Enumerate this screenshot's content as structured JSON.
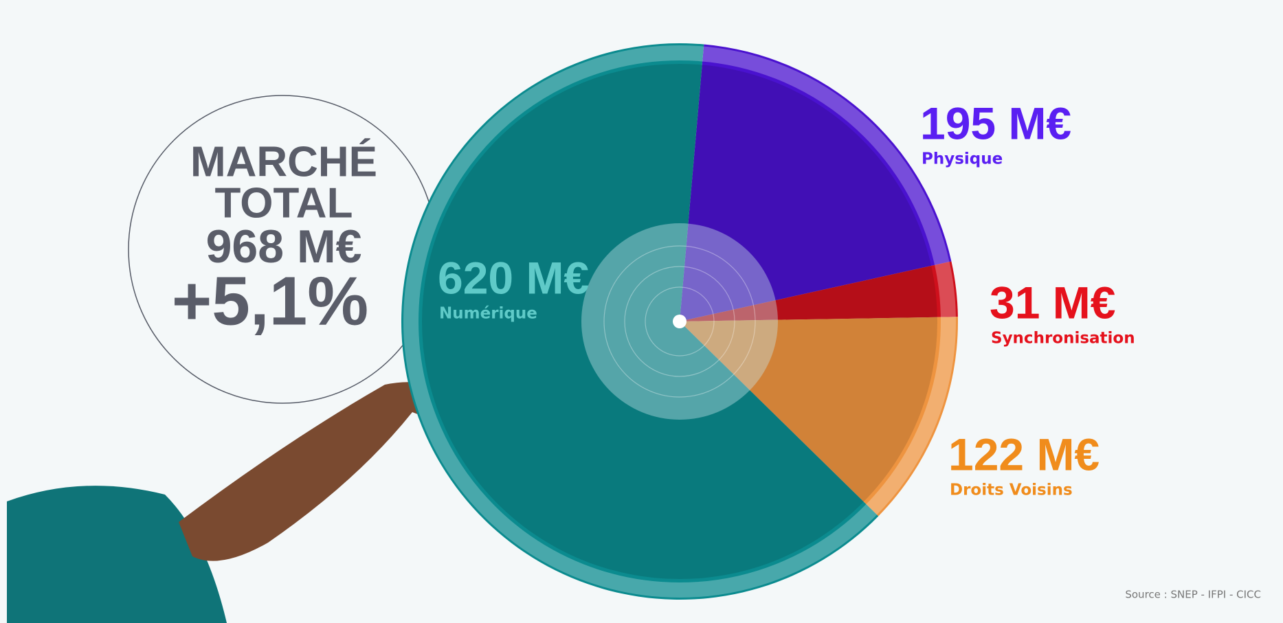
{
  "chart_data": {
    "type": "pie",
    "categories": [
      "Physique",
      "Synchronisation",
      "Droits Voisins",
      "Numérique"
    ],
    "values": [
      195,
      31,
      122,
      620
    ],
    "value_labels": [
      "195 M€",
      "31 M€",
      "122 M€",
      "620 M€"
    ],
    "colors": [
      "#4a12cf",
      "#cf101c",
      "#ee9440",
      "#0b8b8f"
    ],
    "label_colors": [
      "#5a1ff2",
      "#e5111c",
      "#f08c1c",
      "#5fcac8"
    ],
    "annotations": [
      "MARCHÉ",
      "TOTAL",
      "968 M€",
      "+5,1%"
    ],
    "source": "Source : SNEP - IFPI - CICC"
  }
}
